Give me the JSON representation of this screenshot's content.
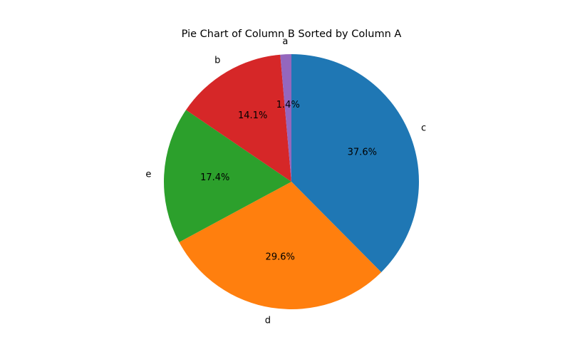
{
  "chart_data": {
    "type": "pie",
    "title": "Pie Chart of Column B Sorted by Column A",
    "start_angle_deg": 90,
    "direction": "clockwise",
    "slices": [
      {
        "label": "c",
        "percent": 37.6,
        "pct_label": "37.6%",
        "color": "#1f77b4"
      },
      {
        "label": "d",
        "percent": 29.6,
        "pct_label": "29.6%",
        "color": "#ff7f0e"
      },
      {
        "label": "e",
        "percent": 17.4,
        "pct_label": "17.4%",
        "color": "#2ca02c"
      },
      {
        "label": "b",
        "percent": 14.1,
        "pct_label": "14.1%",
        "color": "#d62728"
      },
      {
        "label": "a",
        "percent": 1.4,
        "pct_label": "1.4%",
        "color": "#9467bd"
      }
    ]
  }
}
